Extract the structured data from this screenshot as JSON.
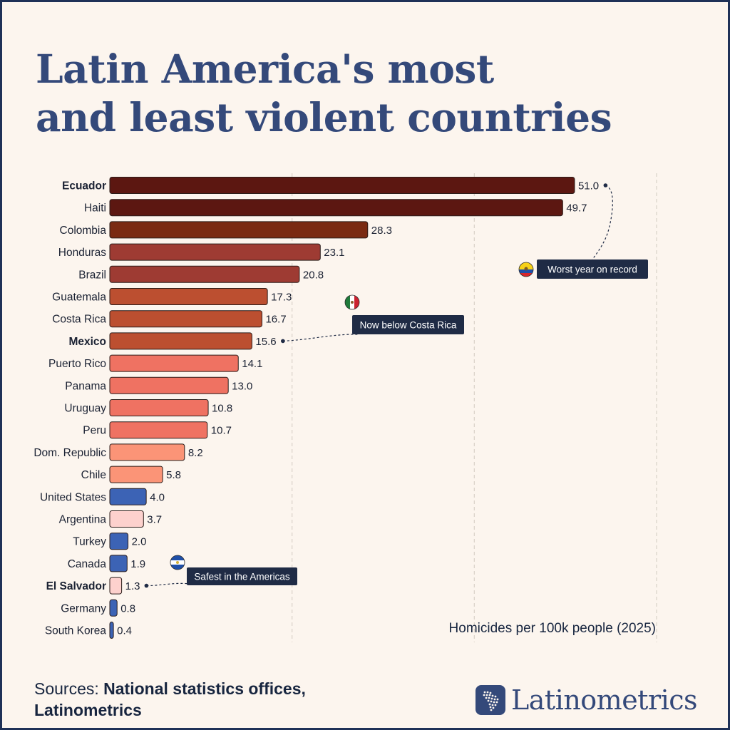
{
  "title_lines": [
    "Latin America's most",
    "and least violent countries"
  ],
  "chart_data": {
    "type": "bar",
    "orientation": "horizontal",
    "unit_label": "Homicides per 100k people (2025)",
    "xlim": [
      0,
      60
    ],
    "grid": "vertical dashed lines at 20, 40, 60",
    "categories": [
      "Ecuador",
      "Haiti",
      "Colombia",
      "Honduras",
      "Brazil",
      "Guatemala",
      "Costa Rica",
      "Mexico",
      "Puerto Rico",
      "Panama",
      "Uruguay",
      "Peru",
      "Dom. Republic",
      "Chile",
      "United States",
      "Argentina",
      "Turkey",
      "Canada",
      "El Salvador",
      "Germany",
      "South Korea"
    ],
    "values": [
      51.0,
      49.7,
      28.3,
      23.1,
      20.8,
      17.3,
      16.7,
      15.6,
      14.1,
      13.0,
      10.8,
      10.7,
      8.2,
      5.8,
      4.0,
      3.7,
      2.0,
      1.9,
      1.3,
      0.8,
      0.4
    ],
    "value_labels": [
      "51.0",
      "49.7",
      "28.3",
      "23.1",
      "20.8",
      "17.3",
      "16.7",
      "15.6",
      "14.1",
      "13.0",
      "10.8",
      "10.7",
      "8.2",
      "5.8",
      "4.0",
      "3.7",
      "2.0",
      "1.9",
      "1.3",
      "0.8",
      "0.4"
    ],
    "bold_categories": [
      "Ecuador",
      "Mexico",
      "El Salvador"
    ],
    "bar_colors": [
      "#5c1711",
      "#5c1711",
      "#7a2a12",
      "#9e3b33",
      "#9e3b33",
      "#bc4f30",
      "#bc4f30",
      "#bc4f30",
      "#ef7262",
      "#ef7262",
      "#ef7262",
      "#ef7262",
      "#fb9477",
      "#fb9477",
      "#3c63b5",
      "#fdd1cd",
      "#3c63b5",
      "#3c63b5",
      "#fdd1cd",
      "#3c63b5",
      "#3c63b5"
    ],
    "annotations": [
      {
        "target": "Ecuador",
        "text": "Worst year on record",
        "flag": "ecuador"
      },
      {
        "target": "Mexico",
        "text": "Now below Costa Rica",
        "flag": "mexico"
      },
      {
        "target": "El Salvador",
        "text": "Safest in the Americas",
        "flag": "el-salvador"
      }
    ]
  },
  "sources": {
    "prefix": "Sources:",
    "text_line1": "National statistics offices,",
    "text_line2": "Latinometrics"
  },
  "brand": {
    "name": "Latinometrics"
  },
  "colors": {
    "title": "#34497a",
    "background": "#fcf5ee",
    "frame": "#1f3157",
    "annotation_box": "#1f2b45"
  }
}
